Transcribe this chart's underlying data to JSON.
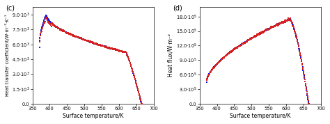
{
  "panel_c_label": "(c)",
  "panel_d_label": "(d)",
  "xlabel": "Surface temperature/K",
  "ylabel_c": "Heat transfer coefficient/W·m⁻²·K⁻¹",
  "ylabel_d": "Heat flux/W·m⁻²",
  "xlim": [
    350,
    700
  ],
  "xticks": [
    350,
    400,
    450,
    500,
    550,
    600,
    650,
    700
  ],
  "ylim_c": [
    0,
    9800.0
  ],
  "ylim_d": [
    0,
    2000000.0
  ],
  "yticks_c": [
    0,
    1500.0,
    3000.0,
    4500.0,
    6000.0,
    7500.0,
    9000.0
  ],
  "yticks_d": [
    0,
    300000.0,
    600000.0,
    900000.0,
    1200000.0,
    1500000.0,
    1800000.0
  ],
  "blue_color": "#1515e0",
  "red_color": "#d42020",
  "dot_size": 1.8,
  "bg_color": "#ffffff",
  "T_start": 370,
  "T_end": 667
}
